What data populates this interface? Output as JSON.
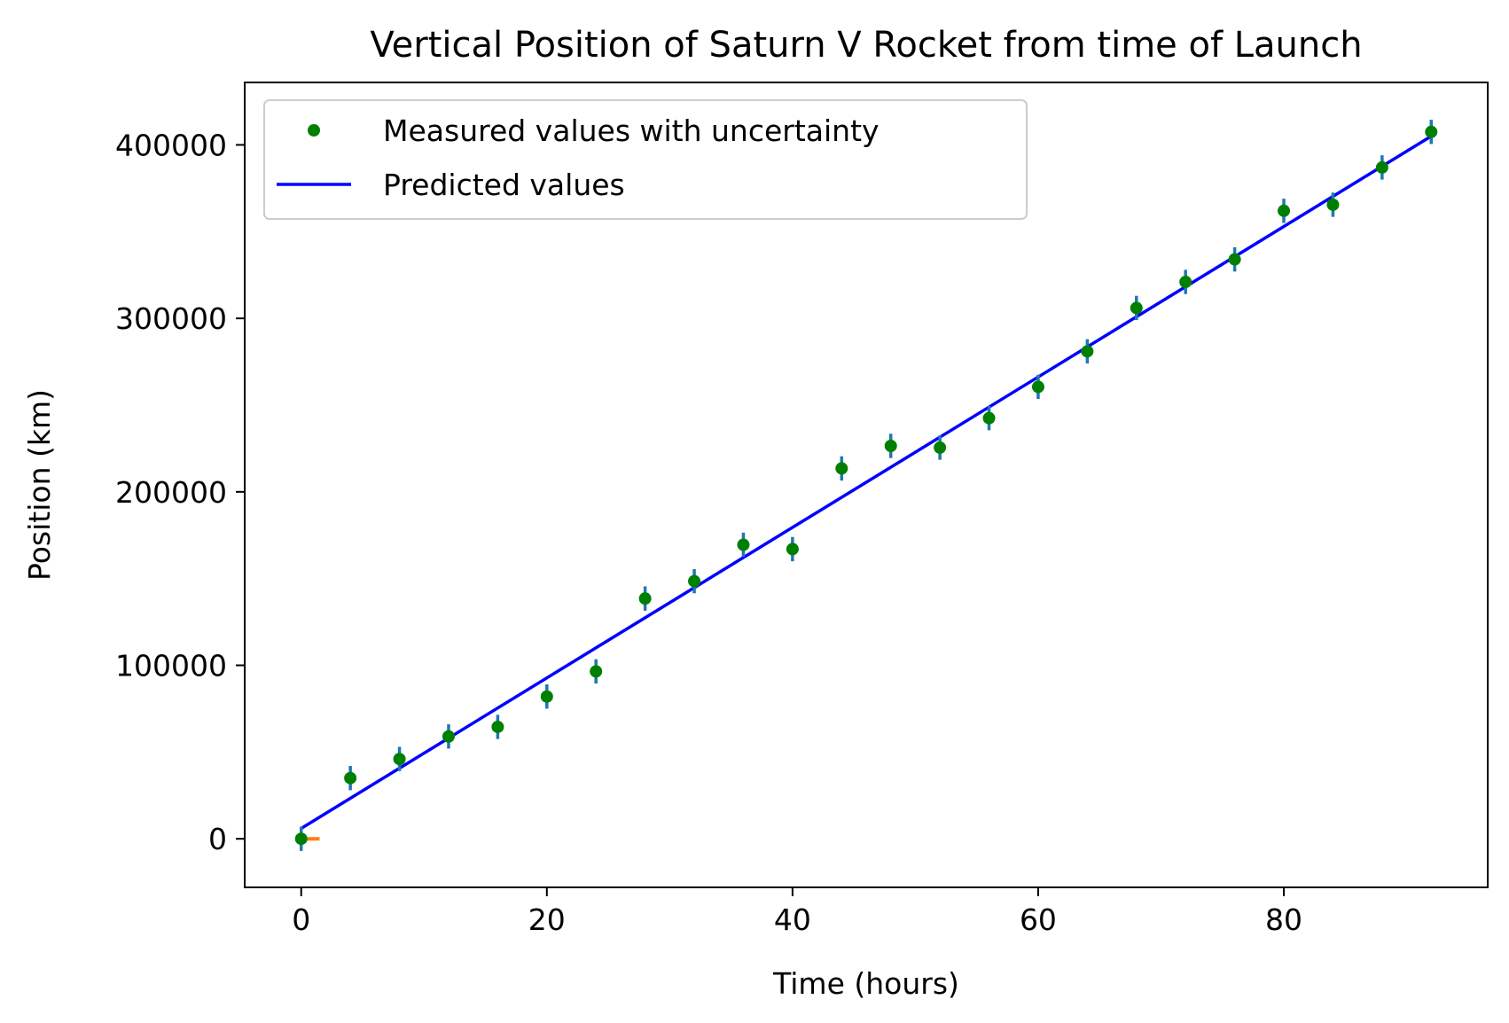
{
  "chart_data": {
    "type": "scatter",
    "title": "Vertical Position of Saturn V Rocket from time of Launch",
    "xlabel": "Time (hours)",
    "ylabel": "Position (km)",
    "xlim": [
      -4.6,
      96.6
    ],
    "ylim": [
      -28000,
      436000
    ],
    "x_ticks": [
      0,
      20,
      40,
      60,
      80
    ],
    "y_ticks": [
      0,
      100000,
      200000,
      300000,
      400000
    ],
    "x_tick_labels": [
      "0",
      "20",
      "40",
      "60",
      "80"
    ],
    "y_tick_labels": [
      "0",
      "100000",
      "200000",
      "300000",
      "400000"
    ],
    "grid": false,
    "legend_position": "top-left",
    "colors": {
      "measured_points": "#008000",
      "error_bars": "#1f77b4",
      "predicted_line": "#0000ff",
      "x_error_bar": "#ff7f0e"
    },
    "series": [
      {
        "name": "Measured values with uncertainty",
        "kind": "points_with_errorbars",
        "x": [
          0,
          4,
          8,
          12,
          16,
          20,
          24,
          28,
          32,
          36,
          40,
          44,
          48,
          52,
          56,
          60,
          64,
          68,
          72,
          76,
          80,
          84,
          88,
          92
        ],
        "y": [
          0,
          35000,
          46000,
          59000,
          64500,
          82000,
          96500,
          138500,
          148500,
          169500,
          167000,
          213500,
          226500,
          225500,
          242500,
          260500,
          281000,
          306000,
          321000,
          334000,
          362000,
          365500,
          387000,
          407500
        ],
        "y_err": [
          7000,
          7000,
          7000,
          7000,
          7000,
          7000,
          7000,
          7000,
          7000,
          7000,
          7000,
          7000,
          7000,
          7000,
          7000,
          7000,
          7000,
          7000,
          7000,
          7000,
          7000,
          7000,
          7000,
          7000
        ],
        "x_err_first_point": 1.0
      },
      {
        "name": "Predicted values",
        "kind": "line",
        "x": [
          0,
          92
        ],
        "y": [
          6000,
          405000
        ]
      }
    ]
  }
}
